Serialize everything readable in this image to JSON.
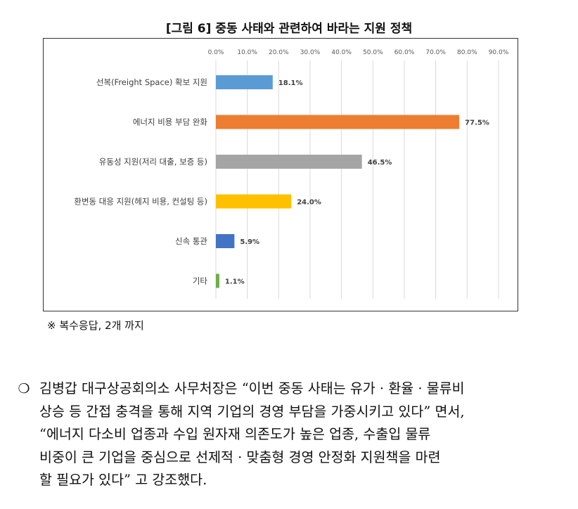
{
  "figure_title": "[그림 6] 중동 사태와 관련하여 바라는 지원 정책",
  "note": "※ 복수응답, 2개 까지",
  "paragraph": {
    "bullet": "❍",
    "lines": [
      "김병갑 대구상공회의소 사무처장은 “이번 중동 사태는 유가 · 환율 · 물류비",
      "상승 등 간접 충격을 통해 지역 기업의 경영 부담을 가중시키고 있다” 면서,",
      "“에너지 다소비 업종과 수입 원자재 의존도가 높은 업종, 수출입 물류",
      "비중이 큰 기업을 중심으로 선제적 · 맞춤형 경영 안정화 지원책을 마련",
      "할 필요가 있다” 고 강조했다."
    ]
  },
  "chart_data": {
    "type": "bar",
    "orientation": "horizontal",
    "title": "[그림 6] 중동 사태와 관련하여 바라는 지원 정책",
    "categories": [
      "선복(Freight Space) 확보 지원",
      "에너지 비용 부담 완화",
      "유동성 지원(저리 대출, 보증 등)",
      "환변동 대응 지원(헤지 비용, 컨설팅 등)",
      "신속 통관",
      "기타"
    ],
    "values": [
      18.1,
      77.5,
      46.5,
      24.0,
      5.9,
      1.1
    ],
    "value_labels": [
      "18.1%",
      "77.5%",
      "46.5%",
      "24.0%",
      "5.9%",
      "1.1%"
    ],
    "colors": [
      "#5b9bd5",
      "#ed7d31",
      "#a5a5a5",
      "#ffc000",
      "#4472c4",
      "#70ad47"
    ],
    "xlim": [
      0,
      90
    ],
    "xticks": [
      "0.0%",
      "10.0%",
      "20.0%",
      "30.0%",
      "40.0%",
      "50.0%",
      "60.0%",
      "70.0%",
      "80.0%",
      "90.0%"
    ],
    "axis_position": "top",
    "grid": true,
    "legend": "none"
  }
}
